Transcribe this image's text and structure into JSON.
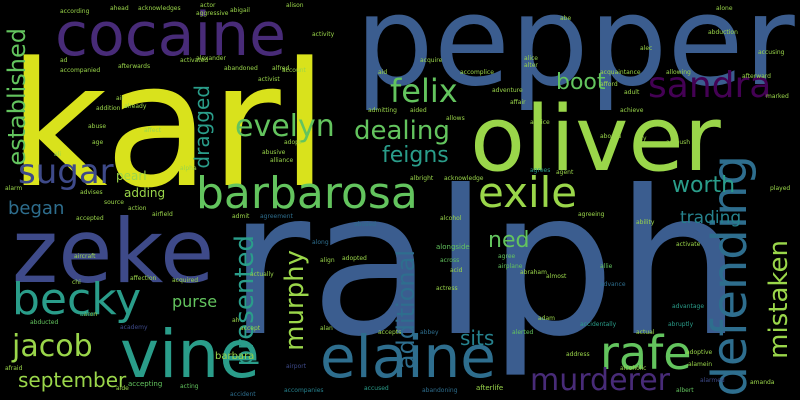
{
  "words": {
    "ralph": "ralph",
    "karl": "karl",
    "pepper": "pepper",
    "oliver": "oliver",
    "zeke": "zeke",
    "cocaine": "cocaine",
    "vine": "vine",
    "elaine": "elaine",
    "barbarosa": "barbarosa",
    "becky": "becky",
    "defending": "defending",
    "sandra": "sandra",
    "felix": "felix",
    "exile": "exile",
    "rafe": "rafe",
    "sugar": "sugar",
    "evelyn": "evelyn",
    "dealing": "dealing",
    "murderer": "murderer",
    "jacob": "jacob",
    "murphy": "murphy",
    "presented": "presented",
    "established": "established",
    "mistaken": "mistaken",
    "feigns": "feigns",
    "worth": "worth",
    "ned": "ned",
    "additional": "additional",
    "boot": "boot",
    "september": "september",
    "sits": "sits",
    "trading": "trading",
    "began": "began",
    "dragged": "dragged",
    "purse": "purse",
    "pearl": "pearl",
    "adding": "adding",
    "barbara": "barbara",
    "accused": "accused",
    "abandoning": "abandoning",
    "afterlife": "afterlife",
    "accepting": "accepting",
    "acting": "acting",
    "airport": "airport",
    "accident": "accident",
    "accompanies": "accompanies",
    "albert": "albert",
    "abducted": "abducted",
    "aaron": "aaron",
    "academy": "academy",
    "accept": "accept",
    "alarmed": "alarmed",
    "abruptly": "abruptly",
    "adoptive": "adoptive",
    "accidentally": "accidentally",
    "actual": "actual",
    "alcoholic": "alcoholic",
    "advantage": "advantage",
    "advance": "advance",
    "allie": "allie",
    "alerted": "alerted",
    "address": "address",
    "abbey": "abbey",
    "accepts": "accepts",
    "alan": "alan",
    "across": "across",
    "agree": "agree",
    "airplane": "airplane",
    "acid": "acid",
    "almost": "almost",
    "alongside": "alongside",
    "adopted": "adopted",
    "align": "align",
    "along": "along",
    "abused": "abused",
    "agreement": "agreement",
    "admit": "admit",
    "activate": "activate",
    "agreeing": "agreeing",
    "played": "played",
    "alcohol": "alcohol",
    "agrees": "agrees",
    "albright": "albright",
    "acknowledge": "acknowledge",
    "alpha": "alpha",
    "airfield": "airfield",
    "accepted": "accepted",
    "advises": "advises",
    "alarm": "alarm",
    "source": "source",
    "action": "action",
    "aircraft": "aircraft",
    "affection": "affection",
    "acquired": "acquired",
    "chi": "chi",
    "alien": "alien",
    "afraid": "afraid",
    "aide": "aide",
    "ali": "ali",
    "abuse": "abuse",
    "air": "air",
    "addition": "addition",
    "affect": "affect",
    "activist": "activist",
    "account": "account",
    "adopt": "adopt",
    "abusive": "abusive",
    "alliance": "alliance",
    "admitting": "admitting",
    "aided": "aided",
    "allows": "allows",
    "advice": "advice",
    "affair": "affair",
    "afford": "afford",
    "adult": "adult",
    "achieve": "achieve",
    "allowing": "allowing",
    "acquaintance": "acquaintance",
    "afterward": "afterward",
    "marked": "marked",
    "accusing": "accusing",
    "abduction": "abduction",
    "alone": "alone",
    "alec": "alec",
    "abigail": "abigail",
    "alison": "alison",
    "actor": "actor",
    "aggressive": "aggressive",
    "ahead": "ahead",
    "acknowledges": "acknowledges",
    "according": "according",
    "alexander": "alexander",
    "accompanied": "accompanied",
    "afterwards": "afterwards",
    "activated": "activated",
    "abandoned": "abandoned",
    "alfred": "alfred",
    "ad": "ad",
    "activity": "activity",
    "aid": "aid",
    "acquire": "acquire",
    "accomplice": "accomplice",
    "adventure": "adventure",
    "alice": "alice",
    "alter": "alter",
    "abe": "abe",
    "ability": "ability",
    "aboard": "aboard",
    "already": "already",
    "ah": "ah",
    "age": "age",
    "ally": "ally",
    "ambush": "ambush",
    "agent": "agent",
    "abraham": "abraham",
    "actually": "actually",
    "actress": "actress",
    "adam": "adam",
    "amanda": "amanda",
    "alamein": "alamein"
  },
  "palette": [
    "#d9e21c",
    "#3b5d8f",
    "#482b78",
    "#2a9d8a",
    "#63c45e",
    "#2e6e8e",
    "#26828e",
    "#440154",
    "#9ad64a",
    "#3e4a89"
  ]
}
